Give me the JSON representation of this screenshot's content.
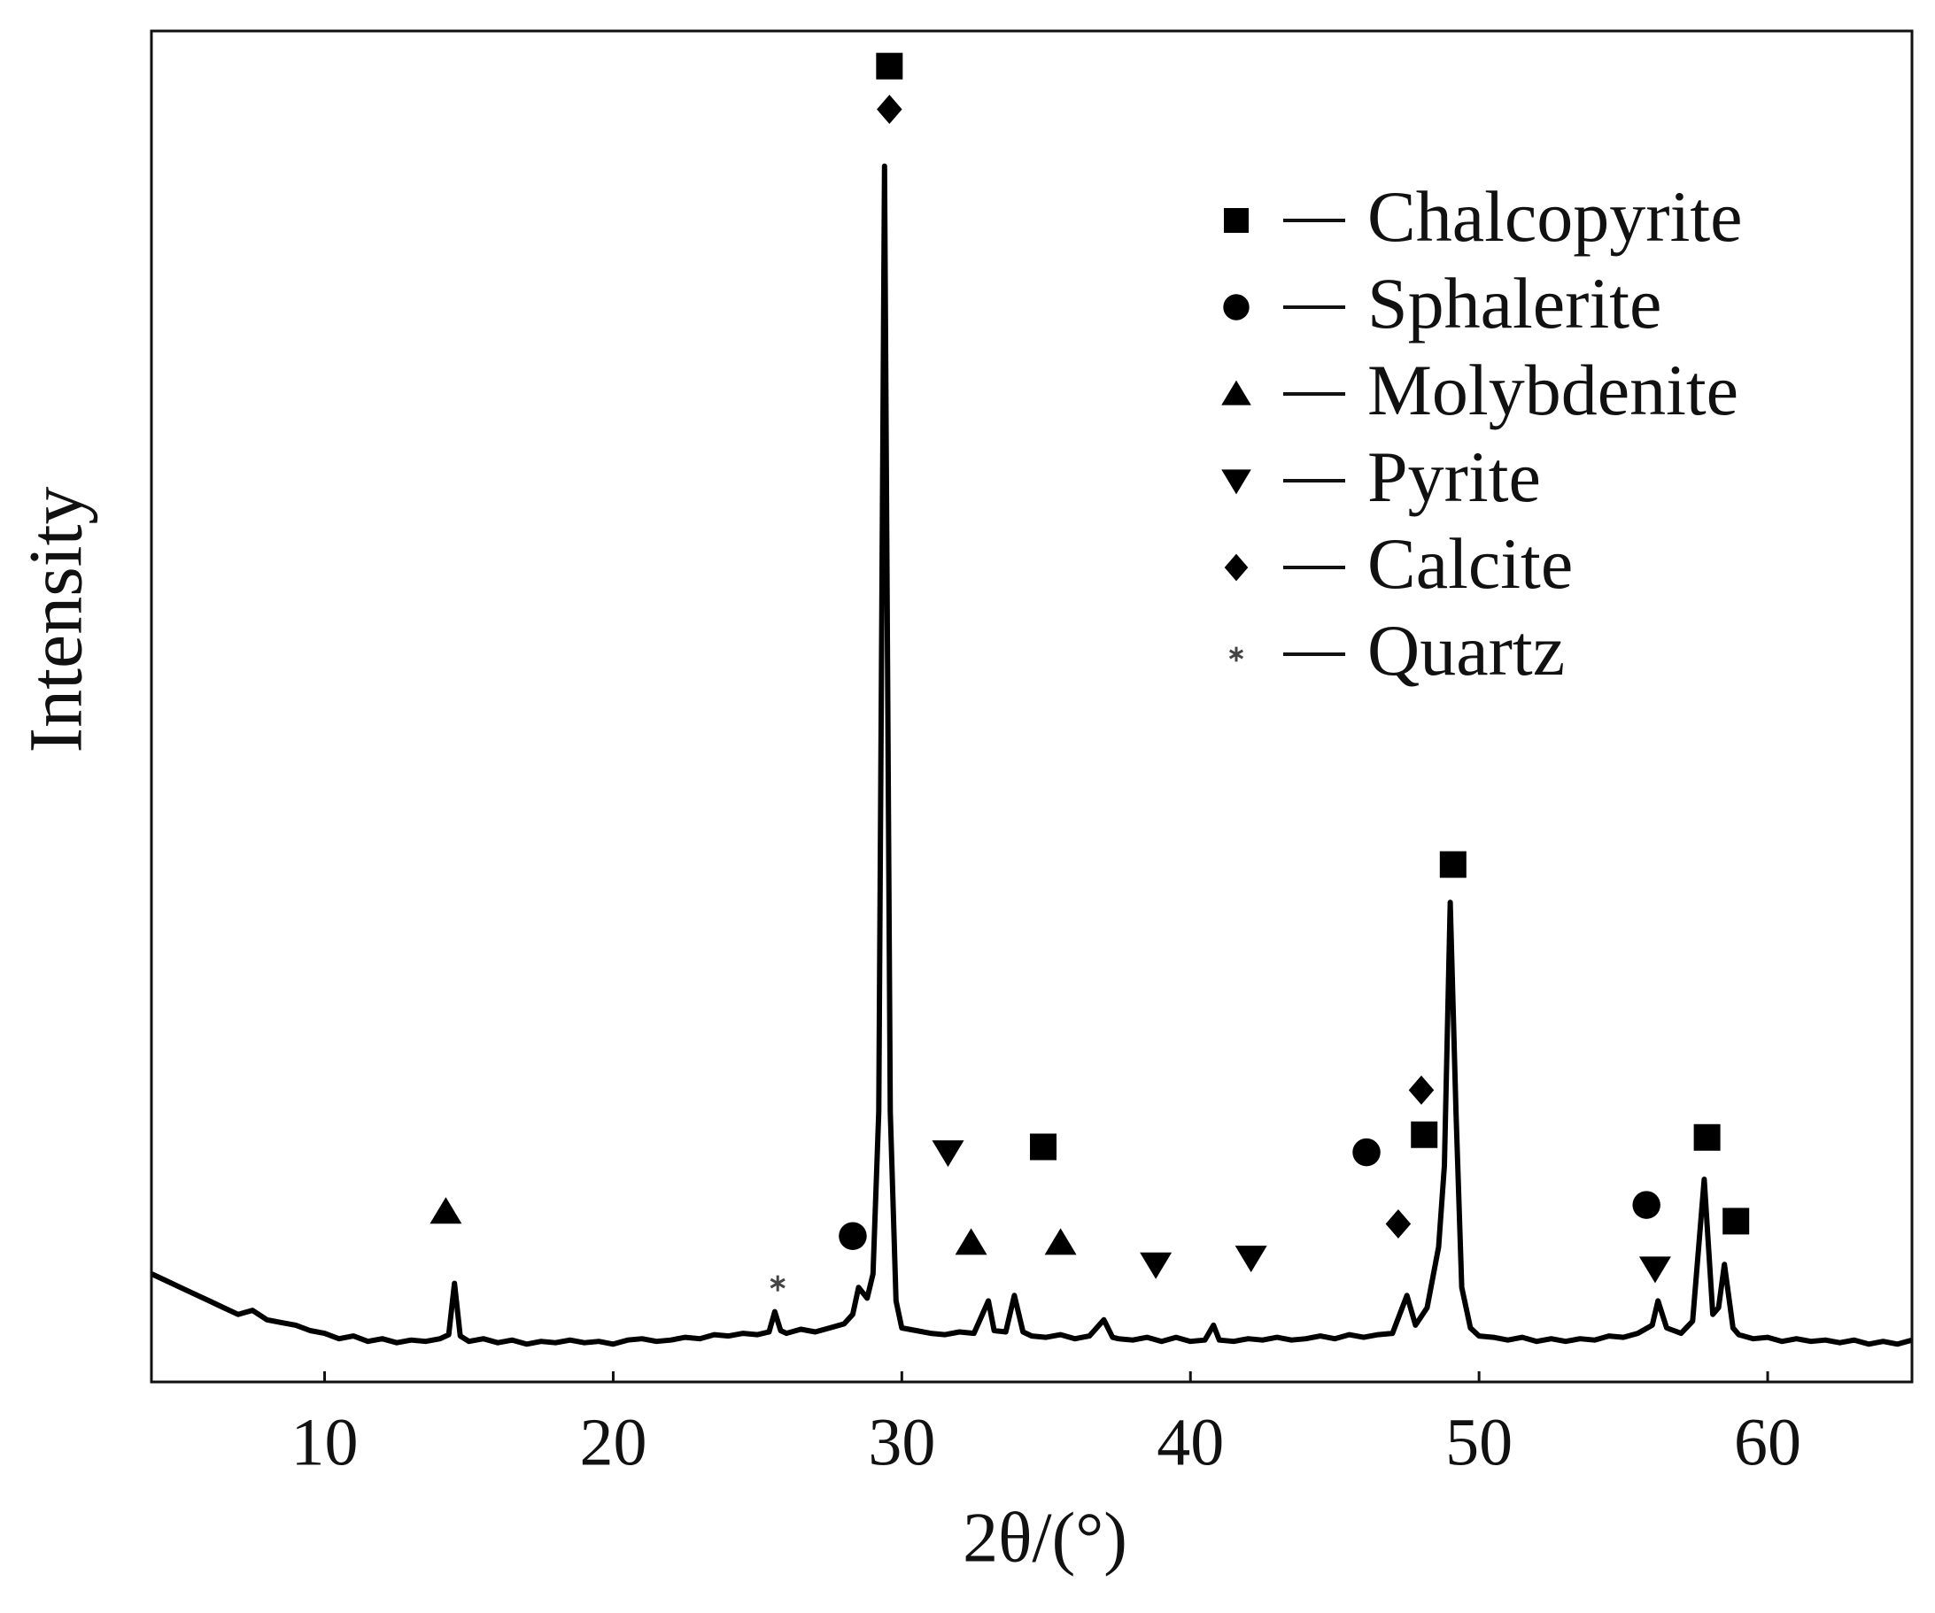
{
  "chart_data": {
    "type": "line",
    "xlabel": "2θ/(°)",
    "ylabel": "Intensity",
    "xlim": [
      4,
      65
    ],
    "xticks": [
      10,
      20,
      30,
      40,
      50,
      60
    ],
    "ylim": [
      0,
      100
    ],
    "legend": "upper right",
    "series": [
      {
        "color": "#000000",
        "x": [
          4,
          4.5,
          5,
          5.5,
          6,
          6.5,
          7,
          7.5,
          8,
          8.5,
          9,
          9.5,
          10,
          10.5,
          11,
          11.5,
          12,
          12.5,
          13,
          13.5,
          14,
          14.3,
          14.5,
          14.7,
          15,
          15.5,
          16,
          16.5,
          17,
          17.5,
          18,
          18.5,
          19,
          19.5,
          20,
          20.5,
          21,
          21.5,
          22,
          22.5,
          23,
          23.5,
          24,
          24.5,
          25,
          25.4,
          25.6,
          25.8,
          26,
          26.5,
          27,
          27.5,
          28,
          28.3,
          28.5,
          28.8,
          29,
          29.2,
          29.4,
          29.6,
          29.8,
          30,
          30.5,
          31,
          31.5,
          32,
          32.5,
          33,
          33.2,
          33.6,
          33.9,
          34.2,
          34.5,
          35,
          35.5,
          36,
          36.5,
          37,
          37.3,
          37.5,
          38,
          38.5,
          39,
          39.5,
          40,
          40.5,
          40.8,
          41,
          41.5,
          42,
          42.5,
          43,
          43.5,
          44,
          44.5,
          45,
          45.5,
          46,
          46.5,
          47,
          47.5,
          47.8,
          48.2,
          48.6,
          48.8,
          49,
          49.2,
          49.4,
          49.7,
          50,
          50.5,
          51,
          51.5,
          52,
          52.5,
          53,
          53.5,
          54,
          54.5,
          55,
          55.5,
          56,
          56.2,
          56.5,
          57,
          57.4,
          57.8,
          58.1,
          58.3,
          58.5,
          58.8,
          59,
          59.5,
          60,
          60.5,
          61,
          61.5,
          62,
          62.5,
          63,
          63.5,
          64,
          64.5,
          65
        ],
        "values": [
          8,
          7.5,
          7,
          6.5,
          6,
          5.5,
          5,
          5.3,
          4.6,
          4.4,
          4.2,
          3.8,
          3.6,
          3.2,
          3.4,
          3.0,
          3.2,
          2.9,
          3.1,
          3.0,
          3.2,
          3.5,
          7.3,
          3.4,
          3.0,
          3.2,
          2.9,
          3.1,
          2.8,
          3.0,
          2.9,
          3.1,
          2.9,
          3.0,
          2.8,
          3.1,
          3.2,
          3.0,
          3.1,
          3.3,
          3.2,
          3.5,
          3.4,
          3.6,
          3.5,
          3.7,
          5.2,
          3.8,
          3.6,
          3.9,
          3.7,
          4.0,
          4.3,
          5.0,
          7.0,
          6.2,
          8,
          20,
          90,
          20,
          6,
          4.0,
          3.8,
          3.6,
          3.5,
          3.7,
          3.6,
          6.0,
          3.8,
          3.7,
          6.4,
          3.7,
          3.4,
          3.3,
          3.5,
          3.2,
          3.4,
          4.6,
          3.3,
          3.2,
          3.1,
          3.3,
          3.0,
          3.3,
          3.0,
          3.1,
          4.2,
          3.1,
          3.0,
          3.2,
          3.1,
          3.3,
          3.1,
          3.2,
          3.4,
          3.2,
          3.5,
          3.3,
          3.5,
          3.6,
          6.4,
          4.2,
          5.5,
          10,
          16,
          35.5,
          20,
          7,
          4.0,
          3.4,
          3.3,
          3.1,
          3.3,
          3.0,
          3.2,
          3.0,
          3.2,
          3.1,
          3.4,
          3.3,
          3.6,
          4.2,
          6.0,
          4.0,
          3.6,
          4.5,
          15,
          5,
          5.5,
          8.7,
          4.0,
          3.5,
          3.2,
          3.3,
          3.0,
          3.2,
          3.0,
          3.1,
          2.9,
          3.1,
          2.8,
          3.0,
          2.8,
          3.1
        ]
      }
    ],
    "phases": [
      {
        "name": "Chalcopyrite",
        "symbol": "square"
      },
      {
        "name": "Sphalerite",
        "symbol": "circle"
      },
      {
        "name": "Molybdenite",
        "symbol": "triangle-up"
      },
      {
        "name": "Pyrite",
        "symbol": "triangle-down"
      },
      {
        "name": "Calcite",
        "symbol": "diamond"
      },
      {
        "name": "Quartz",
        "symbol": "asterisk"
      }
    ],
    "markers": [
      {
        "phase": 0,
        "x": 29.57,
        "y": 97.4
      },
      {
        "phase": 4,
        "x": 29.57,
        "y": 94.2
      },
      {
        "phase": 2,
        "x": 14.2,
        "y": 12.6
      },
      {
        "phase": 5,
        "x": 25.7,
        "y": 7.3
      },
      {
        "phase": 1,
        "x": 28.3,
        "y": 10.8
      },
      {
        "phase": 3,
        "x": 31.6,
        "y": 17
      },
      {
        "phase": 0,
        "x": 34.9,
        "y": 17.4
      },
      {
        "phase": 2,
        "x": 32.4,
        "y": 10.3
      },
      {
        "phase": 2,
        "x": 35.5,
        "y": 10.3
      },
      {
        "phase": 3,
        "x": 38.8,
        "y": 8.7
      },
      {
        "phase": 3,
        "x": 42.1,
        "y": 9.2
      },
      {
        "phase": 1,
        "x": 46.1,
        "y": 17
      },
      {
        "phase": 0,
        "x": 48.1,
        "y": 18.3
      },
      {
        "phase": 4,
        "x": 48.0,
        "y": 21.6
      },
      {
        "phase": 4,
        "x": 47.2,
        "y": 11.7
      },
      {
        "phase": 0,
        "x": 49.1,
        "y": 38.3
      },
      {
        "phase": 1,
        "x": 55.8,
        "y": 13.1
      },
      {
        "phase": 3,
        "x": 56.1,
        "y": 8.4
      },
      {
        "phase": 0,
        "x": 57.9,
        "y": 18.1
      },
      {
        "phase": 0,
        "x": 58.9,
        "y": 11.9
      }
    ]
  }
}
